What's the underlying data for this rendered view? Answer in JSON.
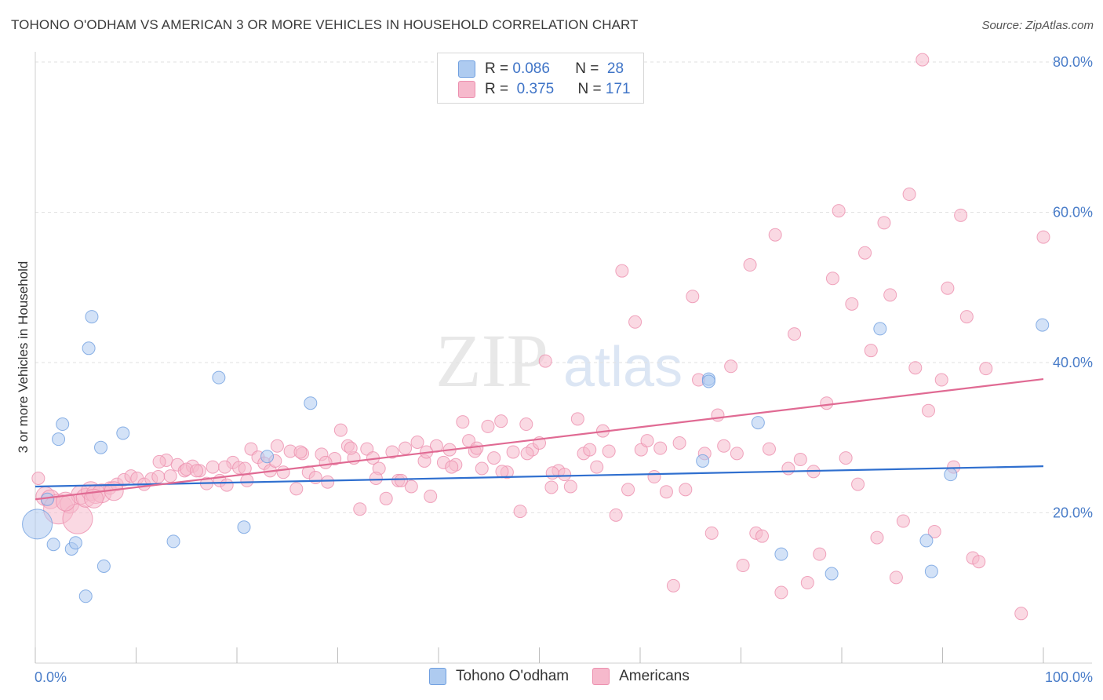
{
  "header": {
    "title": "TOHONO O'ODHAM VS AMERICAN 3 OR MORE VEHICLES IN HOUSEHOLD CORRELATION CHART",
    "source": "Source: ZipAtlas.com"
  },
  "watermark": {
    "zip": "ZIP",
    "atlas": "atlas"
  },
  "legend": {
    "rows": [
      {
        "r_label": "R =",
        "r_value": "0.086",
        "n_label": "N =",
        "n_value": "28",
        "color": "#aecbf0"
      },
      {
        "r_label": "R =",
        "r_value": "0.375",
        "n_label": "N =",
        "n_value": "171",
        "color": "#f6b9cc"
      }
    ]
  },
  "bottom_legend": {
    "items": [
      {
        "label": "Tohono O'odham",
        "color": "#aecbf0"
      },
      {
        "label": "Americans",
        "color": "#f6b9cc"
      }
    ]
  },
  "chart_data": {
    "type": "scatter",
    "title": "TOHONO O'ODHAM VS AMERICAN 3 OR MORE VEHICLES IN HOUSEHOLD CORRELATION CHART",
    "ylabel": "3 or more Vehicles in Household",
    "xlabel": "",
    "xlim": [
      0,
      100
    ],
    "ylim": [
      0,
      82
    ],
    "x_ticks": [
      "0.0%",
      "100.0%"
    ],
    "y_ticks": [
      {
        "value": 20,
        "label": "20.0%"
      },
      {
        "value": 40,
        "label": "40.0%"
      },
      {
        "value": 60,
        "label": "60.0%"
      },
      {
        "value": 80,
        "label": "80.0%"
      }
    ],
    "grid": true,
    "legend_position": "top-center",
    "series": [
      {
        "name": "Tohono O'odham",
        "color": "#aecbf0",
        "edge": "#6f9fe0",
        "trend_color": "#2f6fcf",
        "trend": {
          "x": [
            0,
            100
          ],
          "y": [
            23.5,
            26.2
          ]
        },
        "points": [
          [
            0.2,
            18.5,
            3
          ],
          [
            1.2,
            21.8,
            1
          ],
          [
            1.8,
            15.8,
            1
          ],
          [
            2.3,
            29.8,
            1
          ],
          [
            2.7,
            31.8,
            1
          ],
          [
            3.6,
            15.2,
            1
          ],
          [
            4.0,
            16.0,
            1
          ],
          [
            5.0,
            8.9,
            1
          ],
          [
            5.6,
            46.1,
            1
          ],
          [
            5.3,
            41.9,
            1
          ],
          [
            6.5,
            28.7,
            1
          ],
          [
            6.8,
            12.9,
            1
          ],
          [
            8.7,
            30.6,
            1
          ],
          [
            13.7,
            16.2,
            1
          ],
          [
            18.2,
            38.0,
            1
          ],
          [
            20.7,
            18.1,
            1
          ],
          [
            23.0,
            27.5,
            1
          ],
          [
            27.3,
            34.6,
            1
          ],
          [
            66.2,
            26.9,
            1
          ],
          [
            66.8,
            37.8,
            1
          ],
          [
            66.8,
            37.5,
            1
          ],
          [
            71.7,
            32.0,
            1
          ],
          [
            74.0,
            14.5,
            1
          ],
          [
            79.0,
            11.9,
            1
          ],
          [
            83.8,
            44.5,
            1
          ],
          [
            88.4,
            16.3,
            1
          ],
          [
            88.9,
            12.2,
            1
          ],
          [
            90.8,
            25.1,
            1
          ],
          [
            99.9,
            45.0,
            1
          ]
        ]
      },
      {
        "name": "Americans",
        "color": "#f6b9cc",
        "edge": "#ec8fae",
        "trend_color": "#e06a93",
        "trend": {
          "x": [
            0,
            100
          ],
          "y": [
            21.8,
            37.8
          ]
        },
        "points": [
          [
            0.3,
            24.6,
            1
          ],
          [
            1.0,
            22.2,
            2
          ],
          [
            1.5,
            21.8,
            2
          ],
          [
            2.3,
            20.5,
            3
          ],
          [
            3.4,
            21.2,
            2
          ],
          [
            4.2,
            19.2,
            3
          ],
          [
            4.5,
            22.4,
            2
          ],
          [
            5.0,
            22.0,
            2
          ],
          [
            5.5,
            22.9,
            2
          ],
          [
            6.0,
            22.5,
            2
          ],
          [
            6.6,
            22.6,
            2
          ],
          [
            7.4,
            23.3,
            1
          ],
          [
            8.1,
            23.8,
            1
          ],
          [
            8.8,
            24.4,
            1
          ],
          [
            9.5,
            24.9,
            1
          ],
          [
            10.1,
            24.6,
            1
          ],
          [
            10.8,
            23.8,
            1
          ],
          [
            11.5,
            24.5,
            1
          ],
          [
            12.2,
            24.8,
            1
          ],
          [
            13.0,
            27.0,
            1
          ],
          [
            13.4,
            24.9,
            1
          ],
          [
            14.1,
            26.4,
            1
          ],
          [
            14.8,
            25.6,
            1
          ],
          [
            15.6,
            26.2,
            1
          ],
          [
            16.3,
            25.6,
            1
          ],
          [
            17.0,
            23.9,
            1
          ],
          [
            17.6,
            26.1,
            1
          ],
          [
            18.3,
            24.3,
            1
          ],
          [
            19.0,
            23.7,
            1
          ],
          [
            19.6,
            26.7,
            1
          ],
          [
            20.2,
            26.0,
            1
          ],
          [
            20.8,
            25.9,
            1
          ],
          [
            21.4,
            28.5,
            1
          ],
          [
            22.1,
            27.4,
            1
          ],
          [
            22.7,
            26.6,
            1
          ],
          [
            23.3,
            25.6,
            1
          ],
          [
            24.0,
            28.9,
            1
          ],
          [
            24.6,
            25.4,
            1
          ],
          [
            25.3,
            28.2,
            1
          ],
          [
            25.9,
            23.2,
            1
          ],
          [
            26.5,
            27.9,
            1
          ],
          [
            27.1,
            25.4,
            1
          ],
          [
            27.8,
            24.7,
            1
          ],
          [
            28.4,
            27.8,
            1
          ],
          [
            29.0,
            24.1,
            1
          ],
          [
            29.7,
            27.2,
            1
          ],
          [
            30.3,
            31.0,
            1
          ],
          [
            31.0,
            28.9,
            1
          ],
          [
            31.6,
            27.3,
            1
          ],
          [
            32.2,
            20.5,
            1
          ],
          [
            32.9,
            28.5,
            1
          ],
          [
            33.5,
            27.3,
            1
          ],
          [
            34.1,
            25.9,
            1
          ],
          [
            34.8,
            21.9,
            1
          ],
          [
            35.4,
            28.1,
            1
          ],
          [
            36.0,
            24.3,
            1
          ],
          [
            36.7,
            28.6,
            1
          ],
          [
            37.3,
            23.5,
            1
          ],
          [
            37.9,
            29.4,
            1
          ],
          [
            38.6,
            26.9,
            1
          ],
          [
            39.2,
            22.2,
            1
          ],
          [
            39.8,
            28.9,
            1
          ],
          [
            40.5,
            26.7,
            1
          ],
          [
            41.1,
            28.4,
            1
          ],
          [
            41.7,
            26.4,
            1
          ],
          [
            42.4,
            32.1,
            1
          ],
          [
            43.0,
            29.6,
            1
          ],
          [
            43.6,
            28.2,
            1
          ],
          [
            44.3,
            25.9,
            1
          ],
          [
            44.9,
            31.5,
            1
          ],
          [
            45.5,
            27.3,
            1
          ],
          [
            46.2,
            32.2,
            1
          ],
          [
            46.8,
            25.4,
            1
          ],
          [
            47.4,
            28.1,
            1
          ],
          [
            48.1,
            20.2,
            1
          ],
          [
            48.7,
            31.8,
            1
          ],
          [
            49.3,
            28.4,
            1
          ],
          [
            50.0,
            29.3,
            1
          ],
          [
            50.6,
            40.2,
            1
          ],
          [
            51.2,
            23.4,
            1
          ],
          [
            51.9,
            25.6,
            1
          ],
          [
            52.5,
            25.1,
            1
          ],
          [
            53.1,
            23.5,
            1
          ],
          [
            53.8,
            32.5,
            1
          ],
          [
            54.4,
            27.9,
            1
          ],
          [
            55.0,
            28.4,
            1
          ],
          [
            55.7,
            26.1,
            1
          ],
          [
            56.3,
            30.9,
            1
          ],
          [
            56.9,
            28.2,
            1
          ],
          [
            57.6,
            19.7,
            1
          ],
          [
            58.2,
            52.2,
            1
          ],
          [
            58.8,
            23.1,
            1
          ],
          [
            59.5,
            45.4,
            1
          ],
          [
            60.1,
            28.4,
            1
          ],
          [
            60.7,
            29.6,
            1
          ],
          [
            61.4,
            24.8,
            1
          ],
          [
            62.0,
            28.6,
            1
          ],
          [
            62.6,
            22.8,
            1
          ],
          [
            63.3,
            10.3,
            1
          ],
          [
            63.9,
            29.3,
            1
          ],
          [
            64.5,
            23.1,
            1
          ],
          [
            65.2,
            48.8,
            1
          ],
          [
            65.8,
            37.7,
            1
          ],
          [
            66.4,
            27.9,
            1
          ],
          [
            67.1,
            17.3,
            1
          ],
          [
            67.7,
            33.0,
            1
          ],
          [
            68.3,
            28.9,
            1
          ],
          [
            69.0,
            39.5,
            1
          ],
          [
            69.6,
            27.9,
            1
          ],
          [
            70.2,
            13.0,
            1
          ],
          [
            70.9,
            53.0,
            1
          ],
          [
            71.5,
            17.3,
            1
          ],
          [
            72.1,
            16.9,
            1
          ],
          [
            72.8,
            28.5,
            1
          ],
          [
            73.4,
            57.0,
            1
          ],
          [
            74.0,
            9.4,
            1
          ],
          [
            74.7,
            25.9,
            1
          ],
          [
            75.3,
            43.8,
            1
          ],
          [
            75.9,
            27.1,
            1
          ],
          [
            76.6,
            10.7,
            1
          ],
          [
            77.2,
            25.5,
            1
          ],
          [
            77.8,
            14.5,
            1
          ],
          [
            78.5,
            34.6,
            1
          ],
          [
            79.1,
            51.2,
            1
          ],
          [
            79.7,
            60.2,
            1
          ],
          [
            80.4,
            27.3,
            1
          ],
          [
            81.0,
            47.8,
            1
          ],
          [
            81.6,
            23.8,
            1
          ],
          [
            82.3,
            54.6,
            1
          ],
          [
            82.9,
            41.6,
            1
          ],
          [
            83.5,
            16.7,
            1
          ],
          [
            84.2,
            58.6,
            1
          ],
          [
            84.8,
            49.0,
            1
          ],
          [
            85.4,
            11.4,
            1
          ],
          [
            86.1,
            18.9,
            1
          ],
          [
            86.7,
            62.4,
            1
          ],
          [
            87.3,
            39.3,
            1
          ],
          [
            88.0,
            80.3,
            1
          ],
          [
            88.6,
            33.6,
            1
          ],
          [
            89.2,
            17.5,
            1
          ],
          [
            89.9,
            37.7,
            1
          ],
          [
            90.5,
            49.9,
            1
          ],
          [
            91.1,
            26.1,
            1
          ],
          [
            91.8,
            59.6,
            1
          ],
          [
            92.4,
            46.1,
            1
          ],
          [
            93.0,
            14.0,
            1
          ],
          [
            93.6,
            13.5,
            1
          ],
          [
            94.3,
            39.2,
            1
          ],
          [
            97.8,
            6.6,
            1
          ],
          [
            100.0,
            56.7,
            1
          ],
          [
            3.0,
            21.5,
            2
          ],
          [
            5.8,
            21.9,
            2
          ],
          [
            7.8,
            22.9,
            2
          ],
          [
            12.3,
            26.8,
            1
          ],
          [
            15.0,
            25.8,
            1
          ],
          [
            16.0,
            25.6,
            1
          ],
          [
            18.8,
            26.1,
            1
          ],
          [
            21.0,
            24.3,
            1
          ],
          [
            23.8,
            26.9,
            1
          ],
          [
            26.3,
            28.1,
            1
          ],
          [
            28.8,
            26.7,
            1
          ],
          [
            31.3,
            28.6,
            1
          ],
          [
            33.8,
            24.6,
            1
          ],
          [
            36.3,
            24.3,
            1
          ],
          [
            38.8,
            28.1,
            1
          ],
          [
            41.3,
            26.1,
            1
          ],
          [
            43.8,
            28.6,
            1
          ],
          [
            46.3,
            25.5,
            1
          ],
          [
            48.8,
            27.9,
            1
          ],
          [
            51.3,
            25.3,
            1
          ]
        ]
      }
    ]
  }
}
